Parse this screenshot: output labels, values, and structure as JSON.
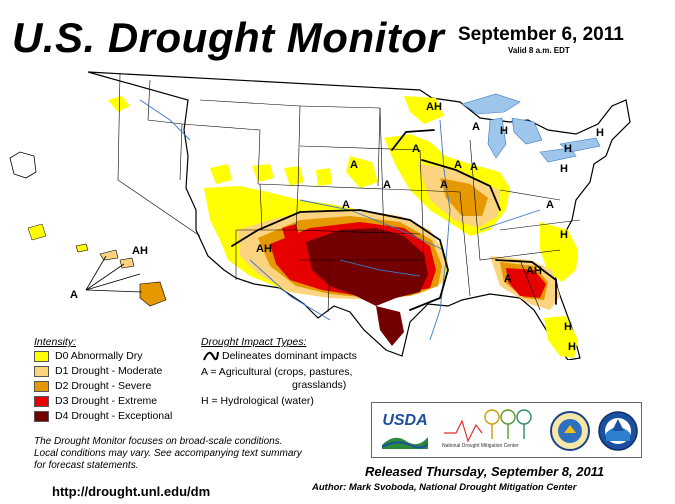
{
  "header": {
    "title": "U.S. Drought Monitor",
    "date": "September 6, 2011",
    "valid": "Valid 8 a.m. EDT"
  },
  "legend": {
    "heading": "Intensity:",
    "items": [
      {
        "label": "D0 Abnormally Dry",
        "color": "#ffff00"
      },
      {
        "label": "D1 Drought - Moderate",
        "color": "#fcd37f"
      },
      {
        "label": "D2 Drought - Severe",
        "color": "#e69800"
      },
      {
        "label": "D3 Drought - Extreme",
        "color": "#e60000"
      },
      {
        "label": "D4 Drought - Exceptional",
        "color": "#730000"
      }
    ]
  },
  "impacts": {
    "heading": "Drought Impact Types:",
    "boundary_label": "Delineates dominant impacts",
    "agricultural_line1": "A = Agricultural (crops, pastures,",
    "agricultural_line2": "grasslands)",
    "hydrological": "H = Hydrological (water)"
  },
  "map_labels": {
    "ah": "AH",
    "a": "A",
    "h": "H"
  },
  "note": {
    "line1": "The Drought Monitor focuses on broad-scale conditions.",
    "line2": "Local conditions may vary. See accompanying text summary",
    "line3": "for forecast statements."
  },
  "footer": {
    "url": "http://drought.unl.edu/dm",
    "released": "Released Thursday, September 8, 2011",
    "author": "Author: Mark Svoboda, National Drought Mitigation Center"
  },
  "logos": {
    "usda": "USDA",
    "ndmc": "National Drought Mitigation Center"
  },
  "colors": {
    "water": "#9dc6ea",
    "land": "#ffffff",
    "state_border": "#000000",
    "river": "#3a78c8"
  }
}
